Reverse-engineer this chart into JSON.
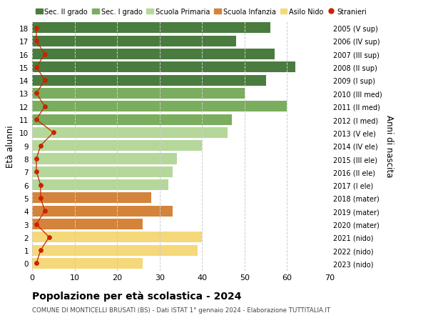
{
  "ages": [
    18,
    17,
    16,
    15,
    14,
    13,
    12,
    11,
    10,
    9,
    8,
    7,
    6,
    5,
    4,
    3,
    2,
    1,
    0
  ],
  "bar_values": [
    56,
    48,
    57,
    62,
    55,
    50,
    60,
    47,
    46,
    40,
    34,
    33,
    32,
    28,
    33,
    26,
    40,
    39,
    26
  ],
  "stranieri": [
    1,
    1,
    3,
    1,
    3,
    1,
    3,
    1,
    5,
    2,
    1,
    1,
    2,
    2,
    3,
    1,
    4,
    2,
    1
  ],
  "right_labels": [
    "2005 (V sup)",
    "2006 (IV sup)",
    "2007 (III sup)",
    "2008 (II sup)",
    "2009 (I sup)",
    "2010 (III med)",
    "2011 (II med)",
    "2012 (I med)",
    "2013 (V ele)",
    "2014 (IV ele)",
    "2015 (III ele)",
    "2016 (II ele)",
    "2017 (I ele)",
    "2018 (mater)",
    "2019 (mater)",
    "2020 (mater)",
    "2021 (nido)",
    "2022 (nido)",
    "2023 (nido)"
  ],
  "bar_colors": [
    "#4a7c3f",
    "#4a7c3f",
    "#4a7c3f",
    "#4a7c3f",
    "#4a7c3f",
    "#7aad5e",
    "#7aad5e",
    "#7aad5e",
    "#b5d89a",
    "#b5d89a",
    "#b5d89a",
    "#b5d89a",
    "#b5d89a",
    "#d4843a",
    "#d4843a",
    "#d4843a",
    "#f5d87a",
    "#f5d87a",
    "#f5d87a"
  ],
  "legend_labels": [
    "Sec. II grado",
    "Sec. I grado",
    "Scuola Primaria",
    "Scuola Infanzia",
    "Asilo Nido",
    "Stranieri"
  ],
  "legend_colors": [
    "#4a7c3f",
    "#7aad5e",
    "#b5d89a",
    "#d4843a",
    "#f5d87a",
    "#cc2200"
  ],
  "title": "Popolazione per età scolastica - 2024",
  "subtitle": "COMUNE DI MONTICELLI BRUSATI (BS) - Dati ISTAT 1° gennaio 2024 - Elaborazione TUTTITALIA.IT",
  "ylabel_left": "Età alunni",
  "ylabel_right": "Anni di nascita",
  "xlim": [
    0,
    70
  ],
  "xticks": [
    0,
    10,
    20,
    30,
    40,
    50,
    60,
    70
  ],
  "stranieri_color": "#cc2200",
  "bar_height": 0.82,
  "grid_color": "#cccccc",
  "bg_color": "#ffffff"
}
